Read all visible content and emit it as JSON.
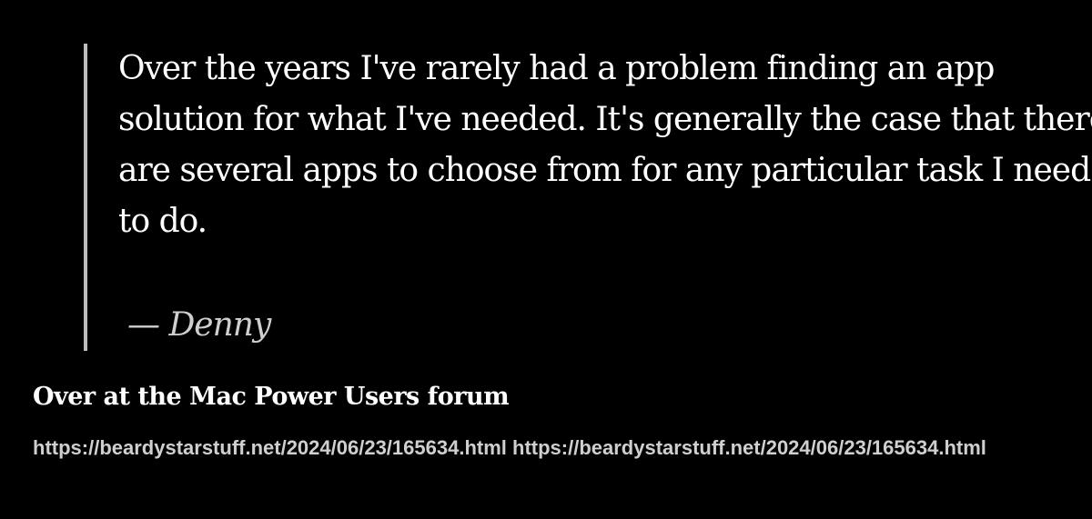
{
  "quote": {
    "text": "Over the years I've rarely had a problem finding an app solution for what I've needed. It's generally the case that there are several apps to choose from for any particular task I need to do.",
    "attribution": "— Denny"
  },
  "post": {
    "title": "Over at the Mac Power Users forum",
    "url_1": "https://beardystarstuff.net/2024/06/23/165634.html",
    "url_2": "https://beardystarstuff.net/2024/06/23/165634.html"
  },
  "colors": {
    "background": "#000000",
    "text": "#ffffff",
    "muted_text": "#cfcfcf",
    "quote_border": "#bdbdbd"
  }
}
